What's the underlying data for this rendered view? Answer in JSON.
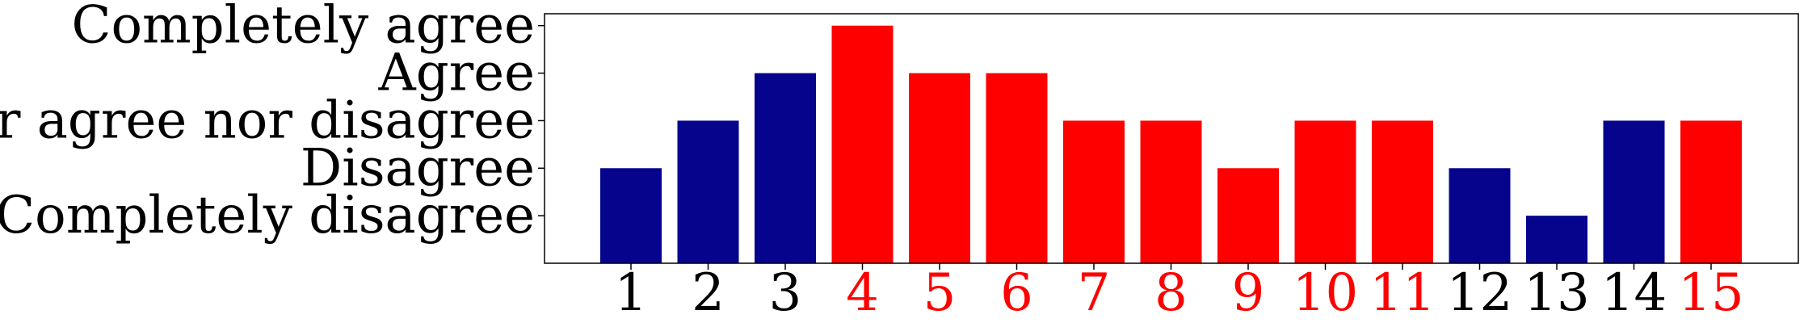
{
  "chart_data": {
    "type": "bar",
    "categories": [
      "1",
      "2",
      "3",
      "4",
      "5",
      "6",
      "7",
      "8",
      "9",
      "10",
      "11",
      "12",
      "13",
      "14",
      "15"
    ],
    "values": [
      2,
      3,
      4,
      5,
      4,
      4,
      3,
      3,
      2,
      3,
      3,
      2,
      1,
      3,
      3
    ],
    "bar_colors": [
      "#06038d",
      "#06038d",
      "#06038d",
      "#ff0000",
      "#ff0000",
      "#ff0000",
      "#ff0000",
      "#ff0000",
      "#ff0000",
      "#ff0000",
      "#ff0000",
      "#06038d",
      "#06038d",
      "#06038d",
      "#ff0000"
    ],
    "xtick_colors": [
      "#000000",
      "#000000",
      "#000000",
      "#ff0000",
      "#ff0000",
      "#ff0000",
      "#ff0000",
      "#ff0000",
      "#ff0000",
      "#ff0000",
      "#ff0000",
      "#000000",
      "#000000",
      "#000000",
      "#ff0000"
    ],
    "y_ticks": [
      {
        "value": 1,
        "label": "Completely disagree"
      },
      {
        "value": 2,
        "label": "Disagree"
      },
      {
        "value": 3,
        "label": "Neither agree nor disagree"
      },
      {
        "value": 4,
        "label": "Agree"
      },
      {
        "value": 5,
        "label": "Completely agree"
      }
    ],
    "ylim": [
      0,
      5.25
    ],
    "title": "",
    "xlabel": "",
    "ylabel": "",
    "grid": false,
    "legend": false
  }
}
